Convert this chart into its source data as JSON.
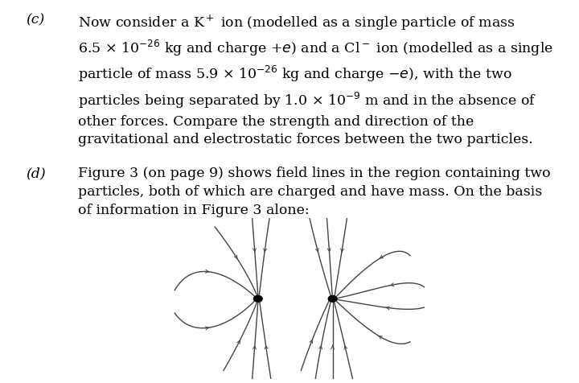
{
  "bg_color": "#ffffff",
  "text_c_label": "(c)",
  "text_c_body": "Now consider a K$^+$ ion (modelled as a single particle of mass\n6.5 × 10$^{-26}$ kg and charge +$e$) and a Cl$^-$ ion (modelled as a single\nparticle of mass 5.9 × 10$^{-26}$ kg and charge −$e$), with the two\nparticles being separated by 1.0 × 10$^{-9}$ m and in the absence of\nother forces. Compare the strength and direction of the\ngravitational and electrostatic forces between the two particles.",
  "text_d_label": "(d)",
  "text_d_body": "Figure 3 (on page 9) shows field lines in the region containing two\nparticles, both of which are charged and have mass. On the basis\nof information in Figure 3 alone:",
  "line_color": "#444444",
  "particle_color": "#000000",
  "font_size": 12.5
}
